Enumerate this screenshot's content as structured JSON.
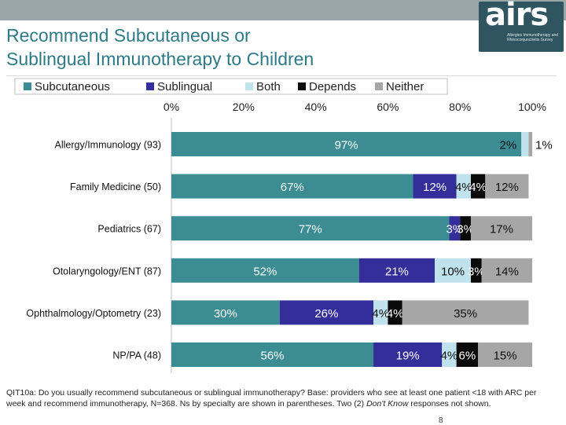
{
  "header": {
    "title_line1": "Recommend Subcutaneous or",
    "title_line2": "Sublingual Immunotherapy to Children"
  },
  "logo": {
    "word": "airs",
    "subtitle": "Allergies Immunotherapy and Rhinoconjunctivitis Survey"
  },
  "colors": {
    "Subcutaneous": "#3c8d93",
    "Sublingual": "#332e99",
    "Both": "#bfe2ec",
    "Depends": "#0a0a0a",
    "Neither": "#a6a6a6"
  },
  "chart_data": {
    "type": "bar",
    "orientation": "horizontal",
    "stacked": true,
    "legend_position": "top",
    "xlim": [
      0,
      100
    ],
    "x_ticks": [
      "0%",
      "20%",
      "40%",
      "60%",
      "80%",
      "100%"
    ],
    "categories": [
      "Allergy/Immunology  (93)",
      "Family Medicine  (50)",
      "Pediatrics (67)",
      "Otolaryngology/ENT  (87)",
      "Ophthalmology/Optometry  (23)",
      "NP/PA  (48)"
    ],
    "series": [
      {
        "name": "Subcutaneous",
        "values": [
          97,
          67,
          77,
          52,
          30,
          56
        ],
        "labels": [
          "97%",
          "67%",
          "77%",
          "52%",
          "30%",
          "56%"
        ]
      },
      {
        "name": "Sublingual",
        "values": [
          0,
          12,
          3,
          21,
          26,
          19
        ],
        "labels": [
          "",
          "12%",
          "3%",
          "21%",
          "26%",
          "19%"
        ]
      },
      {
        "name": "Both",
        "values": [
          2,
          4,
          0,
          10,
          4,
          4
        ],
        "labels": [
          "2%",
          "4%",
          "",
          "10%",
          "4%",
          "4%"
        ]
      },
      {
        "name": "Depends",
        "values": [
          0,
          4,
          3,
          3,
          4,
          6
        ],
        "labels": [
          "",
          "4%",
          "3%",
          "3%",
          "4%",
          "6%"
        ]
      },
      {
        "name": "Neither",
        "values": [
          1,
          12,
          17,
          14,
          35,
          15
        ],
        "labels": [
          "1%",
          "12%",
          "17%",
          "14%",
          "35%",
          "15%"
        ]
      }
    ]
  },
  "footnote": {
    "text_main": "QIT10a: Do you usually recommend subcutaneous or sublingual immunotherapy? Base: providers who see at least one patient <18 with ARC per week and recommend immunotherapy, N=368. Ns by specialty are shown in parentheses. Two (2) ",
    "text_italic": "Don't Know",
    "text_end": " responses not shown."
  },
  "page_number": "8"
}
